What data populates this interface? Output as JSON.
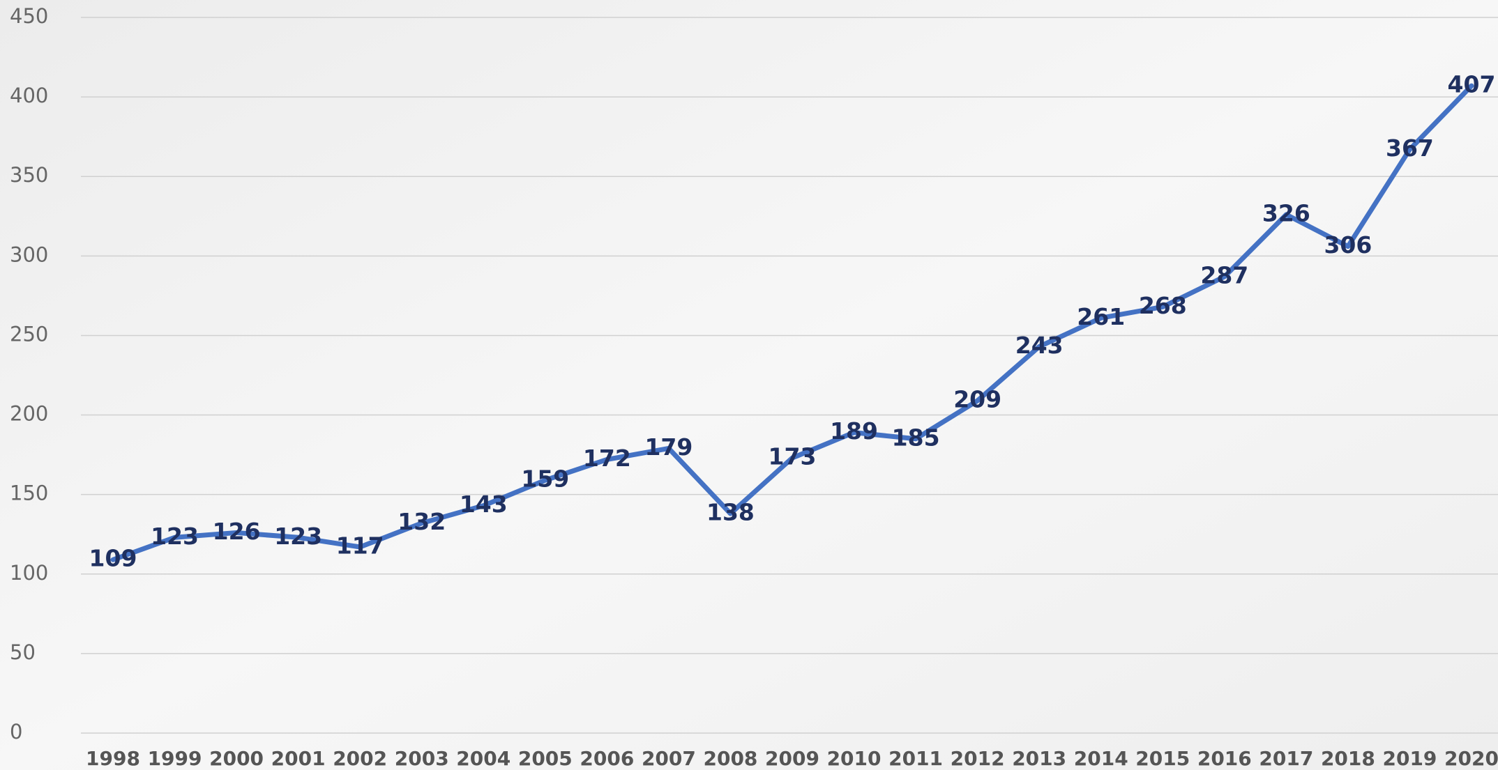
{
  "chart_data": {
    "type": "line",
    "categories": [
      "1998",
      "1999",
      "2000",
      "2001",
      "2002",
      "2003",
      "2004",
      "2005",
      "2006",
      "2007",
      "2008",
      "2009",
      "2010",
      "2011",
      "2012",
      "2013",
      "2014",
      "2015",
      "2016",
      "2017",
      "2018",
      "2019",
      "2020"
    ],
    "values": [
      109,
      123,
      126,
      123,
      117,
      132,
      143,
      159,
      172,
      179,
      138,
      173,
      189,
      185,
      209,
      243,
      261,
      268,
      287,
      326,
      306,
      367,
      407
    ],
    "color": "#4472c4",
    "ylim": [
      0,
      450
    ],
    "yticks": [
      0,
      50,
      100,
      150,
      200,
      250,
      300,
      350,
      400,
      450
    ],
    "grid": true
  }
}
